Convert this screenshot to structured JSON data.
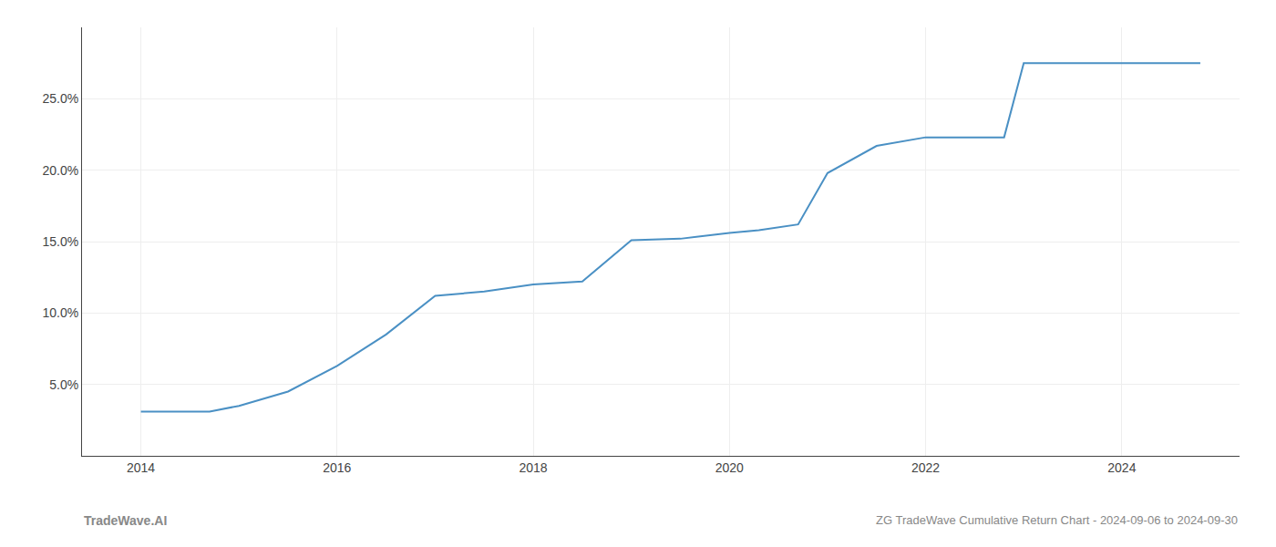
{
  "chart_data": {
    "type": "line",
    "title": "ZG TradeWave Cumulative Return Chart - 2024-09-06 to 2024-09-30",
    "annotations": [
      "TradeWave.AI"
    ],
    "x": [
      2014.0,
      2014.7,
      2015.0,
      2015.5,
      2016.0,
      2016.5,
      2017.0,
      2017.5,
      2018.0,
      2018.5,
      2019.0,
      2019.5,
      2020.0,
      2020.3,
      2020.7,
      2021.0,
      2021.5,
      2022.0,
      2022.3,
      2022.8,
      2023.0,
      2023.3,
      2024.0,
      2024.8
    ],
    "values": [
      3.1,
      3.1,
      3.5,
      4.5,
      6.3,
      8.5,
      11.2,
      11.5,
      12.0,
      12.2,
      15.1,
      15.2,
      15.6,
      15.8,
      16.2,
      19.8,
      21.7,
      22.3,
      22.3,
      22.3,
      27.5,
      27.5,
      27.5,
      27.5
    ],
    "color": "#4a90c4",
    "xlim": [
      2013.4,
      2025.2
    ],
    "ylim": [
      0,
      30
    ],
    "xticks": [
      2014,
      2016,
      2018,
      2020,
      2022,
      2024
    ],
    "yticks": [
      {
        "value": 5.0,
        "label": "5.0%"
      },
      {
        "value": 10.0,
        "label": "10.0%"
      },
      {
        "value": 15.0,
        "label": "15.0%"
      },
      {
        "value": 20.0,
        "label": "20.0%"
      },
      {
        "value": 25.0,
        "label": "25.0%"
      }
    ],
    "grid": true
  }
}
